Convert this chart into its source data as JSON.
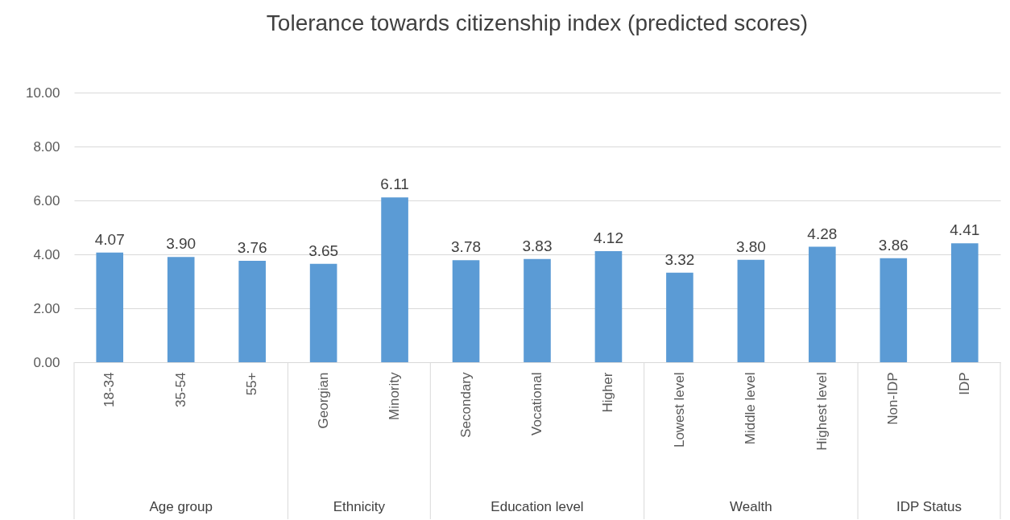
{
  "chart_data": {
    "type": "bar",
    "title": "Tolerance towards citizenship index (predicted scores)",
    "categories": [
      "18-34",
      "35-54",
      "55+",
      "Georgian",
      "Minority",
      "Secondary",
      "Vocational",
      "Higher",
      "Lowest level",
      "Middle level",
      "Highest level",
      "Non-IDP",
      "IDP"
    ],
    "values": [
      4.07,
      3.9,
      3.76,
      3.65,
      6.11,
      3.78,
      3.83,
      4.12,
      3.32,
      3.8,
      4.28,
      3.86,
      4.41
    ],
    "value_labels": [
      "4.07",
      "3.90",
      "3.76",
      "3.65",
      "6.11",
      "3.78",
      "3.83",
      "4.12",
      "3.32",
      "3.80",
      "4.28",
      "3.86",
      "4.41"
    ],
    "color": "#5b9bd5",
    "ylim": [
      0,
      10
    ],
    "yticks": [
      {
        "value": 0,
        "label": "0.00"
      },
      {
        "value": 2,
        "label": "2.00"
      },
      {
        "value": 4,
        "label": "4.00"
      },
      {
        "value": 6,
        "label": "6.00"
      },
      {
        "value": 8,
        "label": "8.00"
      },
      {
        "value": 10,
        "label": "10.00"
      }
    ],
    "grid": true,
    "annotations": [
      "Age group",
      "Ethnicity",
      "Education level",
      "Wealth",
      "IDP Status"
    ]
  }
}
